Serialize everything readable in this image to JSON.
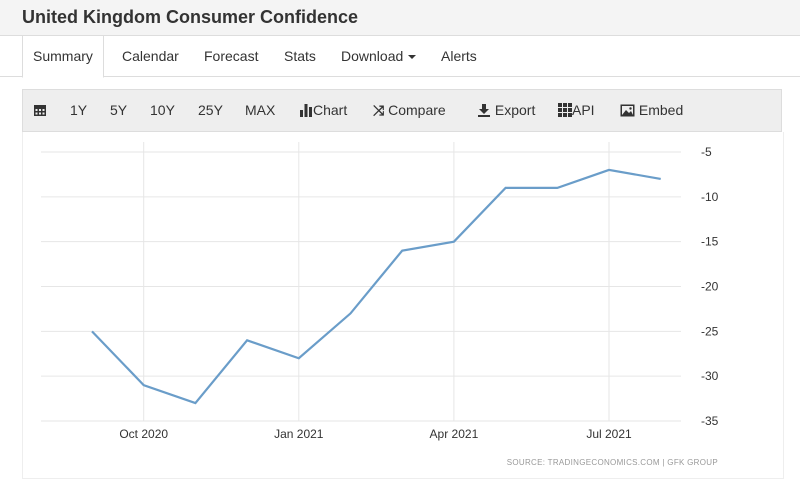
{
  "header": {
    "title": "United Kingdom Consumer Confidence"
  },
  "tabs": [
    "Summary",
    "Calendar",
    "Forecast",
    "Stats",
    "Download",
    "Alerts"
  ],
  "toolbar": {
    "ranges": [
      "1Y",
      "5Y",
      "10Y",
      "25Y",
      "MAX"
    ],
    "chart": "Chart",
    "compare": "Compare",
    "export": "Export",
    "api": "API",
    "embed": "Embed"
  },
  "colors": {
    "line": "#6a9dc9",
    "grid": "#e6e6e6"
  },
  "chart_data": {
    "type": "line",
    "title": "United Kingdom Consumer Confidence",
    "x": [
      "Sep 2020",
      "Oct 2020",
      "Nov 2020",
      "Dec 2020",
      "Jan 2021",
      "Feb 2021",
      "Mar 2021",
      "Apr 2021",
      "May 2021",
      "Jun 2021",
      "Jul 2021",
      "Aug 2021"
    ],
    "values": [
      -25,
      -31,
      -33,
      -26,
      -28,
      -23,
      -16,
      -15,
      -9,
      -9,
      -7,
      -8
    ],
    "x_ticks": [
      {
        "index": 1,
        "label": "Oct 2020"
      },
      {
        "index": 4,
        "label": "Jan 2021"
      },
      {
        "index": 7,
        "label": "Apr 2021"
      },
      {
        "index": 10,
        "label": "Jul 2021"
      }
    ],
    "y_ticks": [
      "-5",
      "-10",
      "-15",
      "-20",
      "-25",
      "-30",
      "-35"
    ],
    "ylim": [
      -35,
      -5
    ],
    "grid": true,
    "source": "SOURCE: TRADINGECONOMICS.COM  |  GFK GROUP"
  }
}
